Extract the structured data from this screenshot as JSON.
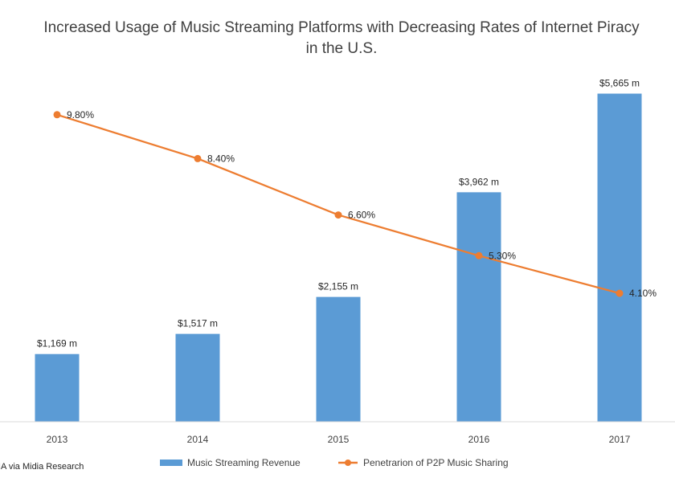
{
  "chart_data": {
    "type": "bar",
    "title_lines": [
      "Increased Usage of Music Streaming Platforms with Decreasing Rates of Internet Piracy",
      "in the U.S."
    ],
    "categories": [
      "2013",
      "2014",
      "2015",
      "2016",
      "2017"
    ],
    "series": [
      {
        "name": "Music Streaming Revenue",
        "kind": "bar",
        "color": "#5B9BD5",
        "values": [
          1169,
          1517,
          2155,
          3962,
          5665
        ],
        "labels": [
          "$1,169 m",
          "$1,517 m",
          "$2,155 m",
          "$3,962 m",
          "$5,665 m"
        ],
        "axis": "primary",
        "ylim": [
          0,
          5950
        ]
      },
      {
        "name": "Penetrarion of P2P Music Sharing",
        "kind": "line",
        "color": "#ED7D31",
        "values": [
          9.8,
          8.4,
          6.6,
          5.3,
          4.1
        ],
        "labels": [
          "9.80%",
          "8.40%",
          "6.60%",
          "5.30%",
          "4.10%"
        ],
        "axis": "secondary",
        "ylim": [
          0,
          11.0
        ]
      }
    ],
    "legend_position": "bottom",
    "grid": false
  },
  "source_text": "IA via Midia Research"
}
